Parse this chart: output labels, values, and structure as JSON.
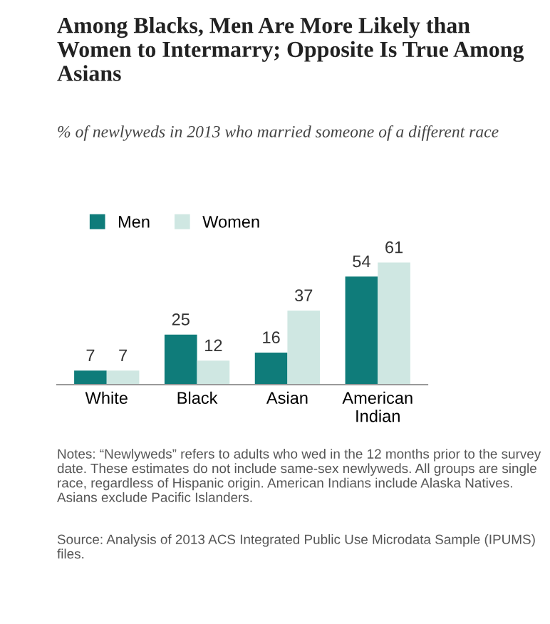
{
  "chart_data": {
    "type": "bar",
    "title": "Among Blacks, Men Are More Likely than Women to Intermarry; Opposite Is True Among Asians",
    "subtitle": "% of newlyweds in 2013 who married someone of a different race",
    "categories": [
      "White",
      "Black",
      "Asian",
      "American\nIndian"
    ],
    "series": [
      {
        "name": "Men",
        "color": "#0f7c7a",
        "values": [
          7,
          25,
          16,
          54
        ]
      },
      {
        "name": "Women",
        "color": "#cfe7e2",
        "values": [
          7,
          12,
          37,
          61
        ]
      }
    ],
    "data_labels": true,
    "legend": "top left",
    "annotations": [
      "Notes: “Newlyweds” refers to adults who wed in the 12 months prior to the survey date. These estimates do not include same-sex newlyweds. All groups are single race, regardless of Hispanic origin. American Indians include Alaska Natives. Asians exclude Pacific Islanders.",
      "Source: Analysis of 2013 ACS Integrated Public Use Microdata Sample (IPUMS) files."
    ]
  }
}
